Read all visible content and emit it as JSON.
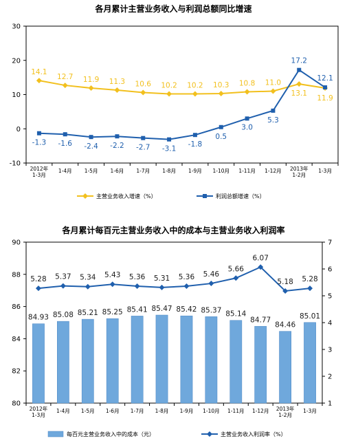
{
  "chart_data": [
    {
      "type": "line",
      "title": "各月累计主营业务收入与利润总额同比增速",
      "categories": [
        [
          "2012年",
          "1-3月"
        ],
        [
          "1-4月"
        ],
        [
          "1-5月"
        ],
        [
          "1-6月"
        ],
        [
          "1-7月"
        ],
        [
          "1-8月"
        ],
        [
          "1-9月"
        ],
        [
          "1-10月"
        ],
        [
          "1-11月"
        ],
        [
          "1-12月"
        ],
        [
          "2013年",
          "1-2月"
        ],
        [
          "1-3月"
        ]
      ],
      "ylim": [
        -10,
        30
      ],
      "yticks": [
        "-10",
        "0",
        "10",
        "20",
        "30"
      ],
      "grid": false,
      "legend": "bottom",
      "series": [
        {
          "name": "主营业务收入增速（%）",
          "color": "#F2C01E",
          "marker": "diamond",
          "values": [
            14.1,
            12.7,
            11.9,
            11.3,
            10.6,
            10.2,
            10.2,
            10.3,
            10.8,
            11.0,
            13.1,
            11.9
          ],
          "labels": [
            "14.1",
            "12.7",
            "11.9",
            "11.3",
            "10.6",
            "10.2",
            "10.2",
            "10.3",
            "10.8",
            "11.0",
            "13.1",
            "11.9"
          ]
        },
        {
          "name": "利润总额增速（%）",
          "color": "#1F5FAD",
          "marker": "square",
          "values": [
            -1.3,
            -1.6,
            -2.4,
            -2.2,
            -2.7,
            -3.1,
            -1.8,
            0.5,
            3.0,
            5.3,
            17.2,
            12.1
          ],
          "labels": [
            "-1.3",
            "-1.6",
            "-2.4",
            "-2.2",
            "-2.7",
            "-3.1",
            "-1.8",
            "0.5",
            "3.0",
            "5.3",
            "17.2",
            "12.1"
          ]
        }
      ]
    },
    {
      "type": "bar",
      "title": "各月累计每百元主营业务收入中的成本与主营业务收入利润率",
      "categories": [
        [
          "2012年",
          "1-3月"
        ],
        [
          "1-4月"
        ],
        [
          "1-5月"
        ],
        [
          "1-6月"
        ],
        [
          "1-7月"
        ],
        [
          "1-8月"
        ],
        [
          "1-9月"
        ],
        [
          "1-10月"
        ],
        [
          "1-11月"
        ],
        [
          "1-12月"
        ],
        [
          "2013年",
          "1-2月"
        ],
        [
          "1-3月"
        ]
      ],
      "ylim": [
        80,
        90
      ],
      "yticks": [
        "80",
        "82",
        "84",
        "86",
        "88",
        "90"
      ],
      "y2lim": [
        1,
        7
      ],
      "y2ticks": [
        "1",
        "2",
        "3",
        "4",
        "5",
        "6",
        "7"
      ],
      "grid": false,
      "legend": "bottom",
      "series": [
        {
          "name": "每百元主营业务收入中的成本（元）",
          "type": "bar",
          "axis": "left",
          "color": "#6FA8DC",
          "values": [
            84.93,
            85.08,
            85.21,
            85.25,
            85.41,
            85.47,
            85.42,
            85.37,
            85.14,
            84.77,
            84.46,
            85.01
          ],
          "labels": [
            "84.93",
            "85.08",
            "85.21",
            "85.25",
            "85.41",
            "85.47",
            "85.42",
            "85.37",
            "85.14",
            "84.77",
            "84.46",
            "85.01"
          ]
        },
        {
          "name": "主营业务收入利润率（%）",
          "type": "line",
          "axis": "right",
          "color": "#1F5FAD",
          "marker": "diamond",
          "values": [
            5.28,
            5.37,
            5.34,
            5.43,
            5.36,
            5.31,
            5.36,
            5.46,
            5.66,
            6.07,
            5.18,
            5.28
          ],
          "labels": [
            "5.28",
            "5.37",
            "5.34",
            "5.43",
            "5.36",
            "5.31",
            "5.36",
            "5.46",
            "5.66",
            "6.07",
            "5.18",
            "5.28"
          ]
        }
      ]
    }
  ]
}
